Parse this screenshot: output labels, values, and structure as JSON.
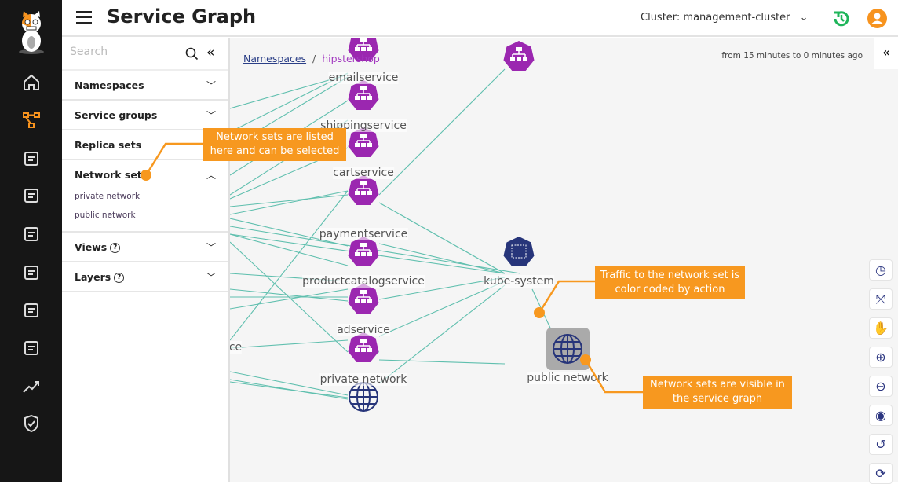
{
  "header": {
    "title": "Service Graph",
    "cluster": "Cluster: management-cluster",
    "chevron": "⌄"
  },
  "rail": {
    "items": [
      "home-icon",
      "service-graph-icon",
      "policies-icon",
      "endpoints-icon",
      "network-icon",
      "namespaces-icon",
      "compliance-icon",
      "dashboards-icon",
      "activity-icon",
      "security-icon"
    ],
    "active": "service-graph-icon",
    "accent": "#f7931e"
  },
  "panel": {
    "search_placeholder": "Search",
    "sections": [
      {
        "label": "Namespaces",
        "open": false
      },
      {
        "label": "Service groups",
        "open": false
      },
      {
        "label": "Replica sets",
        "open": false
      },
      {
        "label": "Network sets",
        "open": true,
        "items": [
          "private network",
          "public network"
        ]
      },
      {
        "label": "Views",
        "open": false,
        "help": "?"
      },
      {
        "label": "Layers",
        "open": false,
        "help": "?"
      }
    ]
  },
  "graph": {
    "breadcrumb": {
      "root": "Namespaces",
      "sep": "/",
      "current": "hipstershop"
    },
    "time_range": "from 15 minutes to 0 minutes ago",
    "nodes": [
      {
        "label": "emailservice",
        "type": "svc"
      },
      {
        "label": "shippingservice",
        "type": "svc"
      },
      {
        "label": "cartservice",
        "type": "svc"
      },
      {
        "label": "paymentservice",
        "type": "svc"
      },
      {
        "label": "productcatalogservice",
        "type": "svc"
      },
      {
        "label": "adservice",
        "type": "svc"
      },
      {
        "label": "private network",
        "type": "networkset"
      },
      {
        "label": "kube-system",
        "type": "namespace"
      },
      {
        "label": "public network",
        "type": "networkset",
        "selected": true
      },
      {
        "label": "ce",
        "type": "svc"
      }
    ],
    "tools": [
      "clock-icon",
      "fit-icon",
      "pan-icon",
      "zoom-in-icon",
      "zoom-out-icon",
      "eye-icon",
      "undo-icon",
      "refresh-icon"
    ],
    "colors": {
      "svc": "#9b27b0",
      "namespace": "#27357a",
      "edge": "#5fbfae",
      "callout": "#f7981f"
    }
  },
  "callouts": [
    "Network sets are listed here and can be selected",
    "Traffic to the network set is color coded by action",
    "Network sets are visible in the service graph"
  ]
}
